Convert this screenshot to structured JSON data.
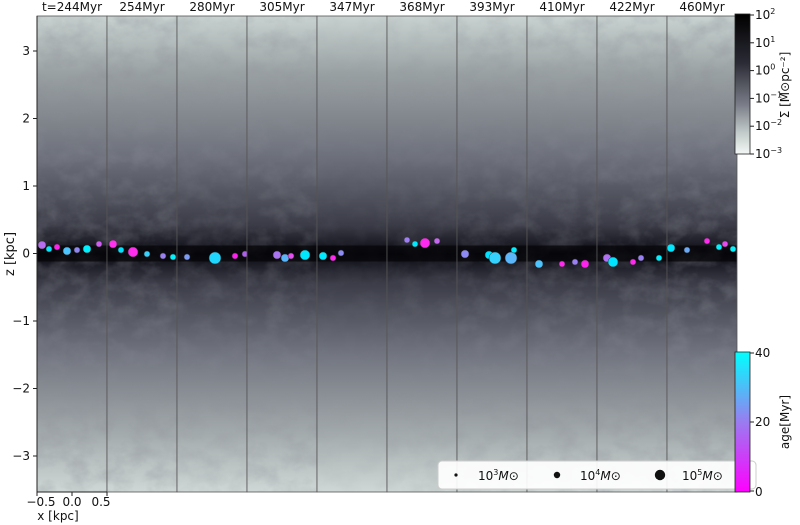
{
  "panels": [
    {
      "label": "t=244Myr"
    },
    {
      "label": "254Myr"
    },
    {
      "label": "280Myr"
    },
    {
      "label": "305Myr"
    },
    {
      "label": "347Myr"
    },
    {
      "label": "368Myr"
    },
    {
      "label": "393Myr"
    },
    {
      "label": "410Myr"
    },
    {
      "label": "422Myr"
    },
    {
      "label": "460Myr"
    }
  ],
  "axes": {
    "y_label": "z [kpc]",
    "y_ticks": [
      "3",
      "2",
      "1",
      "0",
      "−1",
      "−2",
      "−3"
    ],
    "x_label": "x [kpc]",
    "x_ticks": [
      "−0.5",
      "0.0",
      "0.5"
    ],
    "x_extra_tick": "0.5"
  },
  "colorbar_surface": {
    "label": "Σ [M⊙pc⁻²]",
    "exp_ticks": [
      "2",
      "1",
      "0",
      "−1",
      "−2",
      "−3"
    ],
    "colors": {
      "high": "#000000",
      "mid": "#5c5c6c",
      "low": "#f3f8f6"
    }
  },
  "colorbar_age": {
    "label": "age[Myr]",
    "ticks": [
      "40",
      "20",
      "0"
    ],
    "colors": {
      "top": "#00ffff",
      "mid": "#9a7cf0",
      "bottom": "#ff00ff"
    }
  },
  "mass_legend": {
    "entries": [
      {
        "base": "10",
        "exp": "3",
        "unit": "M⊙"
      },
      {
        "base": "10",
        "exp": "4",
        "unit": "M⊙"
      },
      {
        "base": "10",
        "exp": "5",
        "unit": "M⊙"
      }
    ]
  }
}
